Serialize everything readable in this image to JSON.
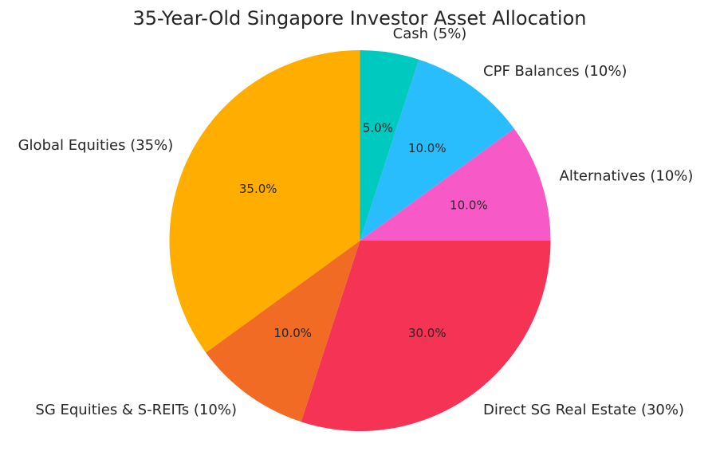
{
  "chart_data": {
    "type": "pie",
    "title": "35-Year-Old Singapore Investor Asset Allocation",
    "start_angle_deg": 90,
    "direction": "clockwise",
    "legend": "none",
    "slices": [
      {
        "label": "Cash (5%)",
        "value": 5,
        "pct_label": "5.0%",
        "color": "#00C9C0"
      },
      {
        "label": "CPF Balances (10%)",
        "value": 10,
        "pct_label": "10.0%",
        "color": "#29BDFD"
      },
      {
        "label": "Alternatives (10%)",
        "value": 10,
        "pct_label": "10.0%",
        "color": "#F75AC6"
      },
      {
        "label": "Direct SG Real Estate (30%)",
        "value": 30,
        "pct_label": "30.0%",
        "color": "#F53355"
      },
      {
        "label": "SG Equities & S-REITs (10%)",
        "value": 10,
        "pct_label": "10.0%",
        "color": "#F26B24"
      },
      {
        "label": "Global Equities (35%)",
        "value": 35,
        "pct_label": "35.0%",
        "color": "#FFAE00"
      }
    ]
  }
}
